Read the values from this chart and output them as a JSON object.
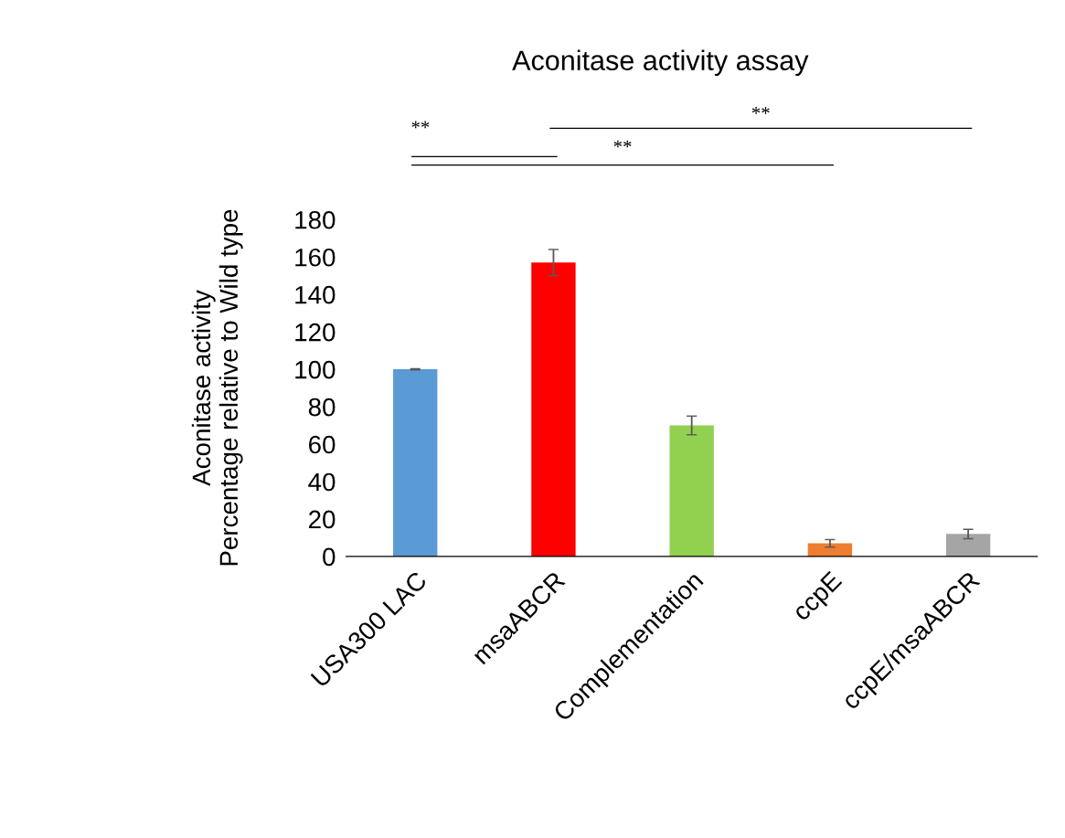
{
  "chart_data": {
    "type": "bar",
    "title": "Aconitase activity assay",
    "ylabel": "Aconitase activity\nPercentage relative to Wild type",
    "categories": [
      "USA300 LAC",
      "msaABCR",
      "Complementation",
      "ccpE",
      "ccpE/msaABCR"
    ],
    "values": [
      100,
      157,
      70,
      7,
      12
    ],
    "errors": [
      0.3,
      7,
      5,
      2,
      2.5
    ],
    "colors": [
      "#5b9bd5",
      "#ff0000",
      "#92d050",
      "#ed7d31",
      "#a5a5a5"
    ],
    "ylim": [
      0,
      180
    ],
    "yticks": [
      0,
      20,
      40,
      60,
      80,
      100,
      120,
      140,
      160,
      180
    ],
    "annotations": [
      "**",
      "**",
      "**"
    ],
    "grid": false,
    "legend": false
  }
}
